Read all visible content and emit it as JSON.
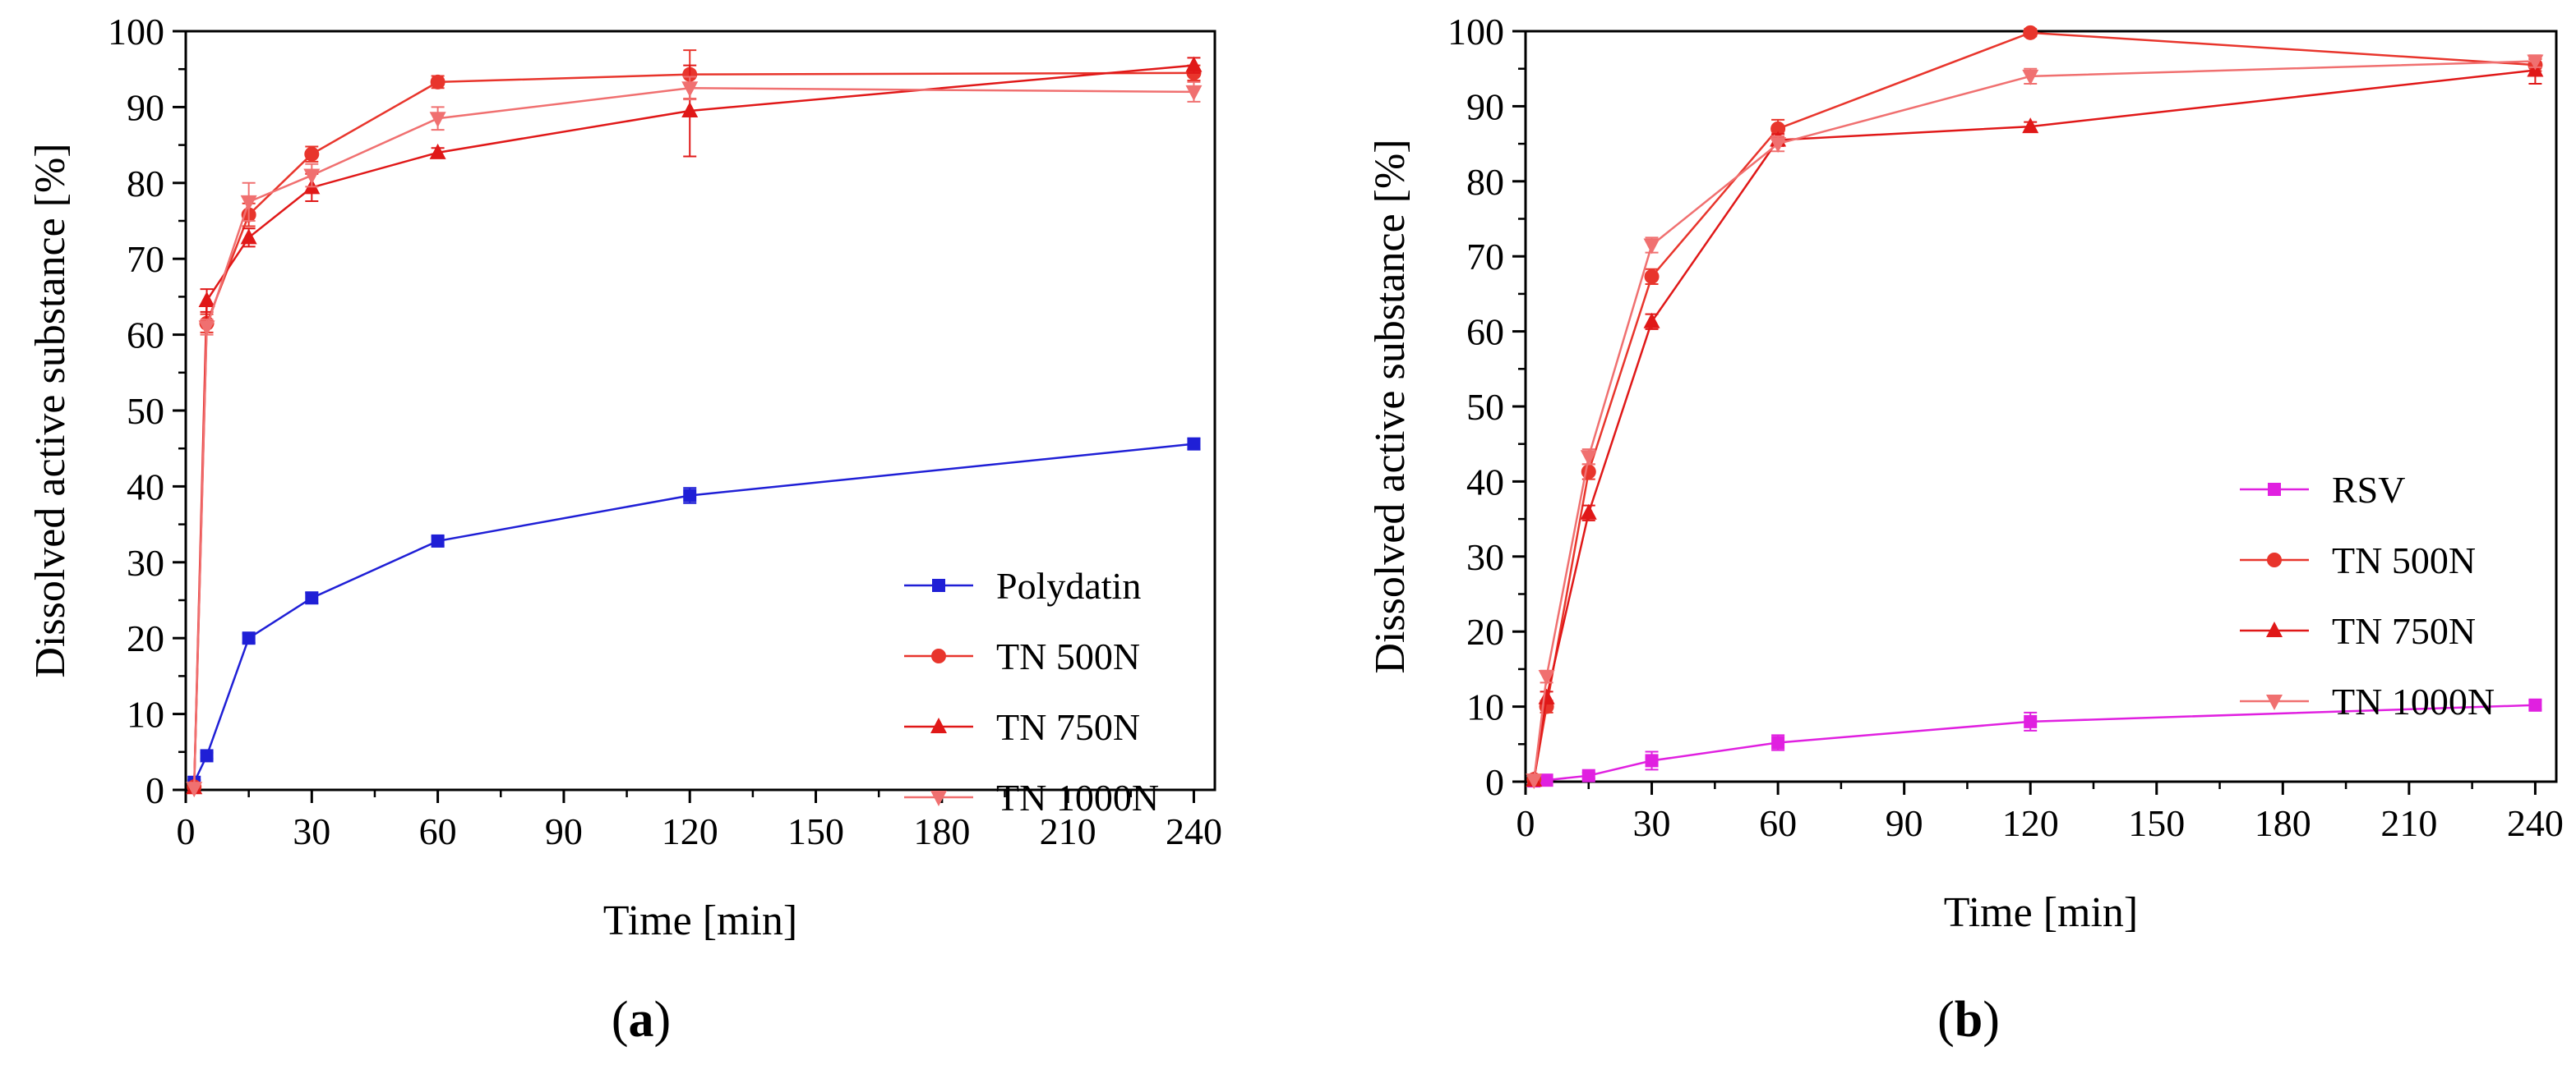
{
  "chart_data": [
    {
      "type": "line",
      "panel_label": "a",
      "xlabel": "Time [min]",
      "ylabel": "Dissolved active substance [%]",
      "xlim": [
        0,
        245
      ],
      "ylim": [
        0,
        100
      ],
      "xticks": [
        0,
        30,
        60,
        90,
        120,
        150,
        180,
        210,
        240
      ],
      "yticks": [
        0,
        10,
        20,
        30,
        40,
        50,
        60,
        70,
        80,
        90,
        100
      ],
      "legend_position": "bottom-right",
      "series": [
        {
          "name": "Polydatin",
          "color": "#1f1fd6",
          "marker": "square",
          "x": [
            2,
            5,
            15,
            30,
            60,
            120,
            240
          ],
          "y": [
            1.0,
            4.5,
            20.0,
            25.3,
            32.8,
            38.8,
            45.6
          ],
          "err": [
            0.3,
            0.4,
            0.6,
            0.7,
            0.6,
            1.0,
            0.7
          ]
        },
        {
          "name": "TN 500N",
          "color": "#e8352c",
          "marker": "circle",
          "x": [
            2,
            5,
            15,
            30,
            60,
            120,
            240
          ],
          "y": [
            0.4,
            61.5,
            75.8,
            83.8,
            93.3,
            94.3,
            94.5
          ],
          "err": [
            0.2,
            1.2,
            1.5,
            1.0,
            0.8,
            3.2,
            1.0
          ]
        },
        {
          "name": "TN 750N",
          "color": "#e01818",
          "marker": "triangle-up",
          "x": [
            2,
            5,
            15,
            30,
            60,
            120,
            240
          ],
          "y": [
            0.3,
            64.5,
            72.8,
            79.4,
            84.0,
            89.5,
            95.5
          ],
          "err": [
            0.2,
            1.5,
            1.2,
            1.8,
            0.6,
            6.0,
            1.0
          ]
        },
        {
          "name": "TN 1000N",
          "color": "#f07070",
          "marker": "triangle-down",
          "x": [
            2,
            5,
            15,
            30,
            60,
            120,
            240
          ],
          "y": [
            0.2,
            61.0,
            77.5,
            81.0,
            88.5,
            92.5,
            92.0
          ],
          "err": [
            0.2,
            1.0,
            2.5,
            1.5,
            1.5,
            1.5,
            1.3
          ]
        }
      ]
    },
    {
      "type": "line",
      "panel_label": "b",
      "xlabel": "Time [min]",
      "ylabel": "Dissolved active substance [%]",
      "xlim": [
        0,
        245
      ],
      "ylim": [
        0,
        100
      ],
      "xticks": [
        0,
        30,
        60,
        90,
        120,
        150,
        180,
        210,
        240
      ],
      "yticks": [
        0,
        10,
        20,
        30,
        40,
        50,
        60,
        70,
        80,
        90,
        100
      ],
      "legend_position": "bottom-right",
      "series": [
        {
          "name": "RSV",
          "color": "#e020e0",
          "marker": "square",
          "x": [
            2,
            5,
            15,
            30,
            60,
            120,
            240
          ],
          "y": [
            0.1,
            0.2,
            0.8,
            2.8,
            5.2,
            8.0,
            10.2
          ],
          "err": [
            0.1,
            0.1,
            0.4,
            1.2,
            1.0,
            1.2,
            0.6
          ]
        },
        {
          "name": "TN 500N",
          "color": "#e8352c",
          "marker": "circle",
          "x": [
            2,
            5,
            15,
            30,
            60,
            120,
            240
          ],
          "y": [
            0.3,
            10.0,
            41.3,
            67.3,
            87.0,
            99.8,
            95.5
          ],
          "err": [
            0.2,
            0.8,
            1.0,
            1.0,
            1.2,
            0.5,
            0.8
          ]
        },
        {
          "name": "TN 750N",
          "color": "#e01818",
          "marker": "triangle-up",
          "x": [
            2,
            5,
            15,
            30,
            60,
            120,
            240
          ],
          "y": [
            0.2,
            11.2,
            35.8,
            61.3,
            85.5,
            87.3,
            94.8
          ],
          "err": [
            0.2,
            0.8,
            1.0,
            1.0,
            0.8,
            0.6,
            1.8
          ]
        },
        {
          "name": "TN 1000N",
          "color": "#f07070",
          "marker": "triangle-down",
          "x": [
            2,
            5,
            15,
            30,
            60,
            120,
            240
          ],
          "y": [
            0.2,
            14.0,
            43.3,
            71.5,
            85.0,
            94.0,
            96.0
          ],
          "err": [
            0.2,
            0.8,
            1.0,
            1.0,
            1.0,
            1.0,
            0.8
          ]
        }
      ]
    }
  ]
}
